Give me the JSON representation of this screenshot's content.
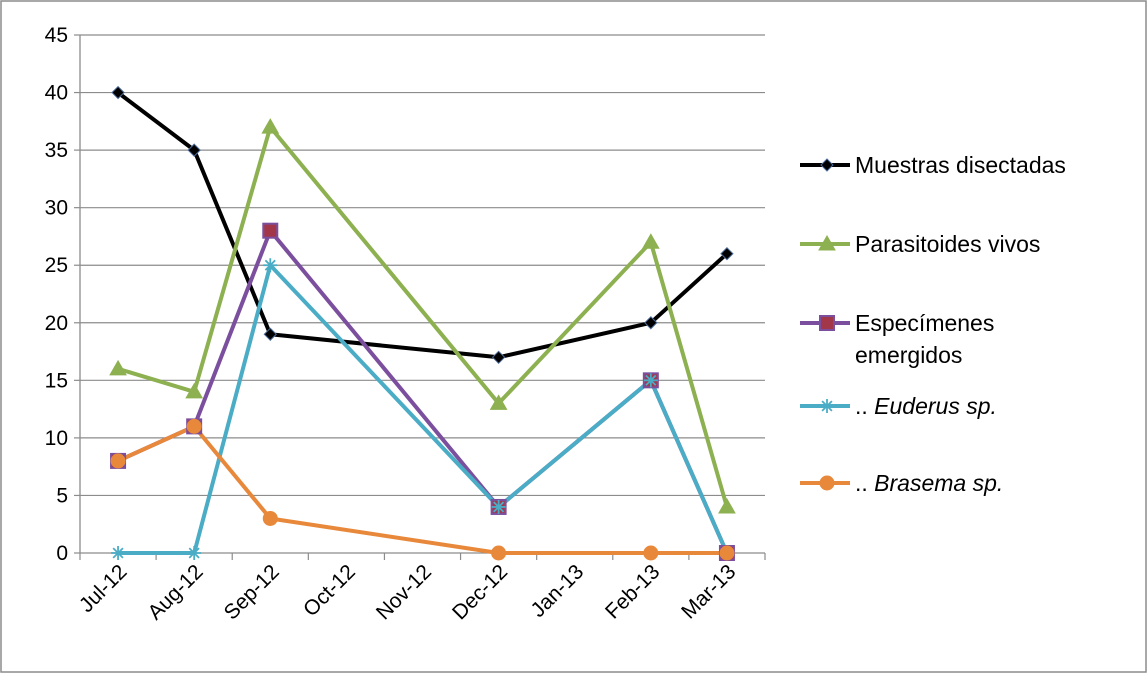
{
  "chart_data": {
    "type": "line",
    "title": "",
    "xlabel": "",
    "ylabel": "",
    "ylim": [
      0,
      45
    ],
    "yticks": [
      0,
      5,
      10,
      15,
      20,
      25,
      30,
      35,
      40,
      45
    ],
    "grid": true,
    "legend_position": "right",
    "categories": [
      "Jul-12",
      "Aug-12",
      "Sep-12",
      "Oct-12",
      "Nov-12",
      "Dec-12",
      "Jan-13",
      "Feb-13",
      "Mar-13"
    ],
    "series": [
      {
        "name": "Muestras disectadas",
        "name_lines": [
          {
            "text": "Muestras disectadas",
            "italic": false
          }
        ],
        "color": "#000000",
        "marker": "diamond",
        "values": [
          40,
          35,
          19,
          null,
          null,
          17,
          null,
          20,
          26
        ]
      },
      {
        "name": "Parasitoides vivos",
        "name_lines": [
          {
            "text": "Parasitoides vivos",
            "italic": false
          }
        ],
        "color": "#8DB050",
        "marker": "triangle",
        "values": [
          16,
          14,
          37,
          null,
          null,
          13,
          null,
          27,
          4
        ]
      },
      {
        "name": "Especímenes emergidos",
        "name_lines": [
          {
            "text": "Especímenes",
            "italic": false
          },
          {
            "text": "emergidos",
            "italic": false
          }
        ],
        "color": "#7B4F9E",
        "marker": "square",
        "marker_fill": "#A2374A",
        "values": [
          8,
          11,
          28,
          null,
          null,
          4,
          null,
          15,
          0
        ]
      },
      {
        "name": ".. Euderus sp.",
        "name_lines": [
          {
            "text": "..",
            "italic": false,
            "suffix": " Euderus sp.",
            "suffix_italic": true
          }
        ],
        "color": "#4BACC6",
        "marker": "star",
        "values": [
          0,
          0,
          25,
          null,
          null,
          4,
          null,
          15,
          0
        ]
      },
      {
        "name": ".. Brasema sp.",
        "name_lines": [
          {
            "text": "..",
            "italic": false,
            "suffix": " Brasema sp.",
            "suffix_italic": true
          }
        ],
        "color": "#E8883A",
        "marker": "circle",
        "values": [
          8,
          11,
          3,
          null,
          null,
          0,
          null,
          0,
          0
        ]
      }
    ]
  }
}
